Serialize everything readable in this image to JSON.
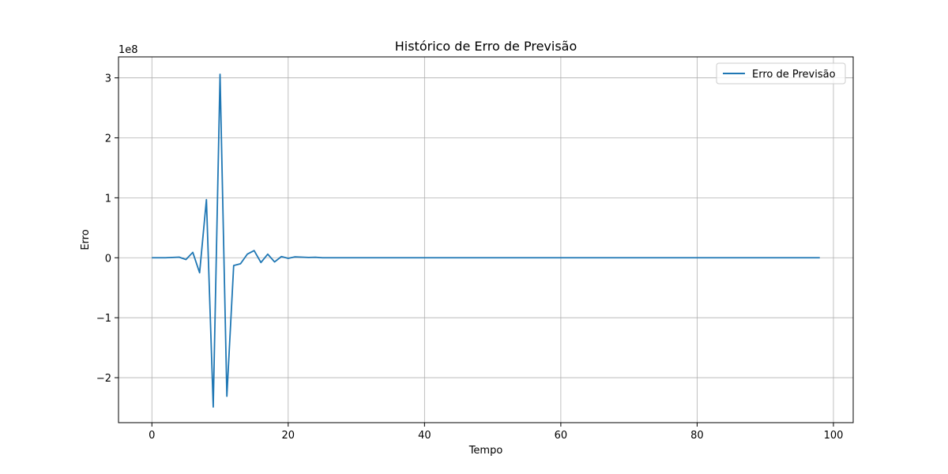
{
  "chart_data": {
    "type": "line",
    "title": "Histórico de Erro de Previsão",
    "xlabel": "Tempo",
    "ylabel": "Erro",
    "y_scale_label": "1e8",
    "xlim": [
      -4.9,
      102.9
    ],
    "ylim": [
      -2.75,
      3.35
    ],
    "x_ticks": [
      0,
      20,
      40,
      60,
      80,
      100
    ],
    "y_ticks": [
      -2,
      -1,
      0,
      1,
      2,
      3
    ],
    "y_tick_labels": [
      "−2",
      "−1",
      "0",
      "1",
      "2",
      "3"
    ],
    "x_tick_labels": [
      "0",
      "20",
      "40",
      "60",
      "80",
      "100"
    ],
    "grid": true,
    "legend_position": "top-right",
    "color": "#1f77b4",
    "series": [
      {
        "name": "Erro de Previsão",
        "x": [
          0,
          1,
          2,
          3,
          4,
          5,
          6,
          7,
          8,
          9,
          10,
          11,
          12,
          13,
          14,
          15,
          16,
          17,
          18,
          19,
          20,
          21,
          22,
          23,
          24,
          25,
          26,
          27,
          28,
          29,
          30,
          31,
          32,
          33,
          34,
          35,
          36,
          37,
          38,
          39,
          40,
          41,
          42,
          43,
          44,
          45,
          46,
          47,
          48,
          49,
          50,
          51,
          52,
          53,
          54,
          55,
          56,
          57,
          58,
          59,
          60,
          61,
          62,
          63,
          64,
          65,
          66,
          67,
          68,
          69,
          70,
          71,
          72,
          73,
          74,
          75,
          76,
          77,
          78,
          79,
          80,
          81,
          82,
          83,
          84,
          85,
          86,
          87,
          88,
          89,
          90,
          91,
          92,
          93,
          94,
          95,
          96,
          97,
          98
        ],
        "y": [
          0,
          0,
          0,
          0.005,
          0.01,
          -0.03,
          0.09,
          -0.25,
          0.97,
          -2.49,
          3.06,
          -2.31,
          -0.13,
          -0.1,
          0.06,
          0.12,
          -0.08,
          0.06,
          -0.07,
          0.02,
          -0.01,
          0.015,
          0.01,
          0.005,
          0.008,
          0,
          0,
          0,
          0,
          0,
          0,
          0,
          0,
          0,
          0,
          0,
          0,
          0,
          0,
          0,
          0,
          0,
          0,
          0,
          0,
          0,
          0,
          0,
          0,
          0,
          0,
          0,
          0,
          0,
          0,
          0,
          0,
          0,
          0,
          0,
          0,
          0,
          0,
          0,
          0,
          0,
          0,
          0,
          0,
          0,
          0,
          0,
          0,
          0,
          0,
          0,
          0,
          0,
          0,
          0,
          0,
          0,
          0,
          0,
          0,
          0,
          0,
          0,
          0,
          0,
          0,
          0,
          0,
          0,
          0,
          0,
          0,
          0,
          0
        ]
      }
    ]
  }
}
